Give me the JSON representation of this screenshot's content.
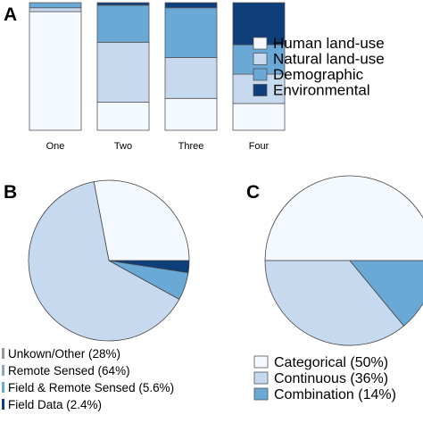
{
  "chart_data": [
    {
      "panel": "A",
      "type": "bar",
      "stacked": true,
      "normalized": true,
      "categories": [
        "One",
        "Two",
        "Three",
        "Four"
      ],
      "series": [
        {
          "name": "Human land-use",
          "color": "#f4f8ff",
          "values": [
            0.93,
            0.22,
            0.25,
            0.21
          ]
        },
        {
          "name": "Natural land-use",
          "color": "#c6d9ef",
          "values": [
            0.03,
            0.47,
            0.32,
            0.23
          ]
        },
        {
          "name": "Demographic",
          "color": "#6aa8d6",
          "values": [
            0.04,
            0.29,
            0.39,
            0.23
          ]
        },
        {
          "name": "Environmental",
          "color": "#0e3e7a",
          "values": [
            0.0,
            0.02,
            0.04,
            0.33
          ]
        }
      ],
      "ylim": [
        0,
        1
      ],
      "legend": "right"
    },
    {
      "panel": "B",
      "type": "pie",
      "slices": [
        {
          "label": "Unkown/Other (28%)",
          "value": 28,
          "color": "#f4f8ff"
        },
        {
          "label": "Remote Sensed (64%)",
          "value": 64,
          "color": "#c6d9ef"
        },
        {
          "label": "Field & Remote Sensed (5.6%)",
          "value": 5.6,
          "color": "#6aa8d6"
        },
        {
          "label": "Field Data (2.4%)",
          "value": 2.4,
          "color": "#0e3e7a"
        }
      ],
      "legend": "bottom"
    },
    {
      "panel": "C",
      "type": "pie",
      "slices": [
        {
          "label": "Categorical (50%)",
          "value": 50,
          "color": "#f4f8ff"
        },
        {
          "label": "Continuous (36%)",
          "value": 36,
          "color": "#c6d9ef"
        },
        {
          "label": "Combination (14%)",
          "value": 14,
          "color": "#6aa8d6"
        }
      ],
      "legend": "bottom"
    }
  ]
}
